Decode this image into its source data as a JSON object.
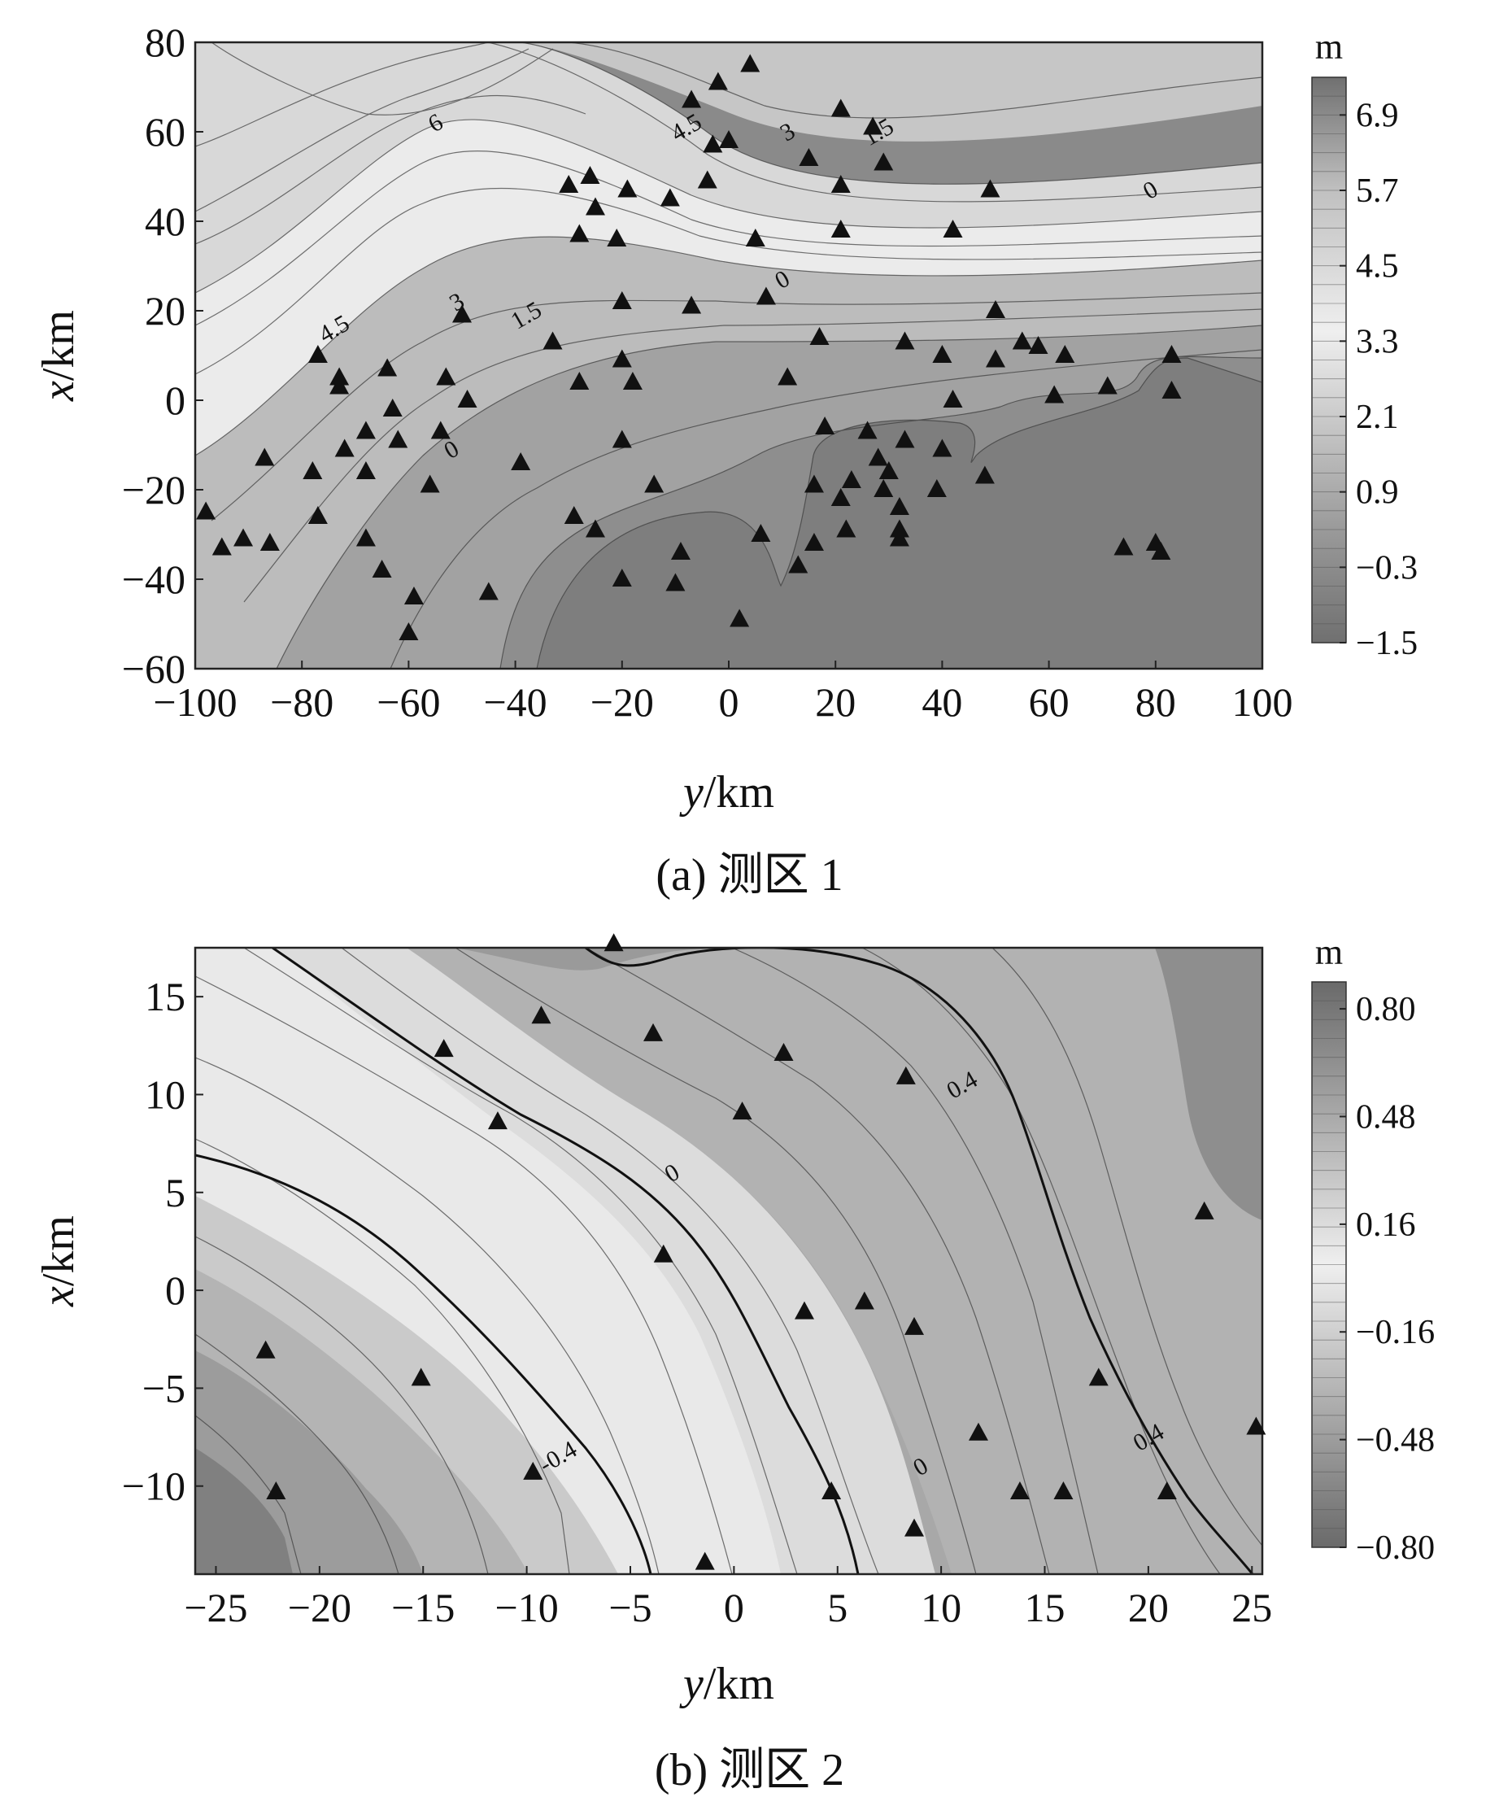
{
  "figure": {
    "captions": [
      "(a) 测区 1",
      "(b) 测区 2"
    ]
  },
  "chart_data": [
    {
      "type": "contour",
      "caption": "(a) 测区 1",
      "xlabel": "y/km",
      "ylabel": "x/km",
      "xlim": [
        -100,
        100
      ],
      "ylim": [
        -60,
        80
      ],
      "xticks": [
        -100,
        -80,
        -60,
        -40,
        -20,
        0,
        20,
        40,
        60,
        80,
        100
      ],
      "yticks": [
        -60,
        -40,
        -20,
        0,
        20,
        40,
        60,
        80
      ],
      "colorbar": {
        "unit": "m",
        "range": [
          -1.5,
          7.5
        ],
        "ticks": [
          -1.5,
          -0.3,
          0.9,
          2.1,
          3.3,
          4.5,
          5.7,
          6.9
        ]
      },
      "contour_labels": [
        {
          "text": "6",
          "y": -55,
          "x": 62
        },
        {
          "text": "4.5",
          "y": -8,
          "x": 61
        },
        {
          "text": "3",
          "y": 11,
          "x": 60
        },
        {
          "text": "1.5",
          "y": 28,
          "x": 60
        },
        {
          "text": "0",
          "y": 79,
          "x": 47
        },
        {
          "text": "4.5",
          "y": -74,
          "x": 16
        },
        {
          "text": "3",
          "y": -51,
          "x": 22
        },
        {
          "text": "1.5",
          "y": -38,
          "x": 19
        },
        {
          "text": "0",
          "y": 10,
          "x": 27
        },
        {
          "text": "0",
          "y": -52,
          "x": -11
        }
      ],
      "stations": [
        [
          -98,
          -25
        ],
        [
          -95,
          -33
        ],
        [
          -91,
          -31
        ],
        [
          -86,
          -32
        ],
        [
          -87,
          -13
        ],
        [
          -78,
          -16
        ],
        [
          -77,
          -26
        ],
        [
          -77,
          10
        ],
        [
          -73,
          5
        ],
        [
          -73,
          3
        ],
        [
          -72,
          -11
        ],
        [
          -68,
          -7
        ],
        [
          -68,
          -16
        ],
        [
          -68,
          -31
        ],
        [
          -65,
          -38
        ],
        [
          -64,
          7
        ],
        [
          -63,
          -2
        ],
        [
          -62,
          -9
        ],
        [
          -60,
          -52
        ],
        [
          -59,
          -44
        ],
        [
          -56,
          -19
        ],
        [
          -54,
          -7
        ],
        [
          -53,
          5
        ],
        [
          -49,
          0
        ],
        [
          -50,
          19
        ],
        [
          -45,
          -43
        ],
        [
          -39,
          -14
        ],
        [
          -33,
          13
        ],
        [
          -30,
          48
        ],
        [
          -29,
          -26
        ],
        [
          -28,
          37
        ],
        [
          -28,
          4
        ],
        [
          -26,
          50
        ],
        [
          -25,
          43
        ],
        [
          -25,
          -29
        ],
        [
          -21,
          36
        ],
        [
          -20,
          22
        ],
        [
          -20,
          9
        ],
        [
          -20,
          -9
        ],
        [
          -20,
          -40
        ],
        [
          -19,
          47
        ],
        [
          -18,
          4
        ],
        [
          -14,
          -19
        ],
        [
          -11,
          45
        ],
        [
          -10,
          -41
        ],
        [
          -9,
          -34
        ],
        [
          -7,
          21
        ],
        [
          -7,
          67
        ],
        [
          -4,
          49
        ],
        [
          -3,
          57
        ],
        [
          -2,
          71
        ],
        [
          0,
          58
        ],
        [
          2,
          -49
        ],
        [
          4,
          75
        ],
        [
          5,
          36
        ],
        [
          6,
          -30
        ],
        [
          7,
          23
        ],
        [
          11,
          5
        ],
        [
          13,
          -37
        ],
        [
          15,
          54
        ],
        [
          16,
          -19
        ],
        [
          16,
          -32
        ],
        [
          17,
          14
        ],
        [
          18,
          -6
        ],
        [
          21,
          -22
        ],
        [
          21,
          48
        ],
        [
          21,
          38
        ],
        [
          21,
          65
        ],
        [
          22,
          -29
        ],
        [
          23,
          -18
        ],
        [
          26,
          -7
        ],
        [
          27,
          61
        ],
        [
          29,
          53
        ],
        [
          28,
          -13
        ],
        [
          29,
          -20
        ],
        [
          30,
          -16
        ],
        [
          32,
          -24
        ],
        [
          32,
          -29
        ],
        [
          32,
          -31
        ],
        [
          33,
          13
        ],
        [
          33,
          -9
        ],
        [
          39,
          -20
        ],
        [
          40,
          10
        ],
        [
          40,
          -11
        ],
        [
          42,
          0
        ],
        [
          42,
          38
        ],
        [
          48,
          -17
        ],
        [
          49,
          47
        ],
        [
          50,
          9
        ],
        [
          50,
          20
        ],
        [
          55,
          13
        ],
        [
          58,
          12
        ],
        [
          63,
          10
        ],
        [
          61,
          1
        ],
        [
          71,
          3
        ],
        [
          74,
          -33
        ],
        [
          80,
          -32
        ],
        [
          81,
          -34
        ],
        [
          83,
          10
        ],
        [
          83,
          2
        ]
      ]
    },
    {
      "type": "contour",
      "caption": "(b) 测区 2",
      "xlabel": "y/km",
      "ylabel": "x/km",
      "xlim": [
        -26,
        25.5
      ],
      "ylim": [
        -14.5,
        17.5
      ],
      "xticks": [
        -25,
        -20,
        -15,
        -10,
        -5,
        0,
        5,
        10,
        15,
        20,
        25
      ],
      "yticks": [
        -10,
        -5,
        0,
        5,
        10,
        15
      ],
      "colorbar": {
        "unit": "m",
        "range": [
          -0.8,
          0.88
        ],
        "ticks": [
          -0.8,
          -0.48,
          -0.16,
          0.16,
          0.48,
          0.8
        ],
        "tick_labels": [
          "−0.80",
          "−0.48",
          "−0.16",
          "0.16",
          "0.48",
          "0.80"
        ]
      },
      "contour_labels": [
        {
          "text": "0.4",
          "y": 11,
          "x": 10.5
        },
        {
          "text": "0",
          "y": -3,
          "x": 6
        },
        {
          "text": "-0.4",
          "y": -8.5,
          "x": -8.5
        },
        {
          "text": "0",
          "y": 9,
          "x": -9
        },
        {
          "text": "0.4",
          "y": 20,
          "x": -7.5
        }
      ],
      "stations": [
        [
          -5.8,
          17.7
        ],
        [
          -9.3,
          14.0
        ],
        [
          -3.9,
          13.1
        ],
        [
          -14,
          12.3
        ],
        [
          2.4,
          12.1
        ],
        [
          8.3,
          10.9
        ],
        [
          -11.4,
          8.6
        ],
        [
          0.4,
          9.1
        ],
        [
          22.7,
          4.0
        ],
        [
          -3.4,
          1.8
        ],
        [
          3.4,
          -1.1
        ],
        [
          6.3,
          -0.6
        ],
        [
          8.7,
          -1.9
        ],
        [
          -15.1,
          -4.5
        ],
        [
          17.6,
          -4.5
        ],
        [
          -22.6,
          -3.1
        ],
        [
          11.8,
          -7.3
        ],
        [
          25.2,
          -7.0
        ],
        [
          -9.7,
          -9.3
        ],
        [
          -22.1,
          -10.3
        ],
        [
          4.7,
          -10.3
        ],
        [
          13.8,
          -10.3
        ],
        [
          15.9,
          -10.3
        ],
        [
          20.9,
          -10.3
        ],
        [
          8.7,
          -12.2
        ],
        [
          -1.4,
          -13.9
        ]
      ]
    }
  ]
}
